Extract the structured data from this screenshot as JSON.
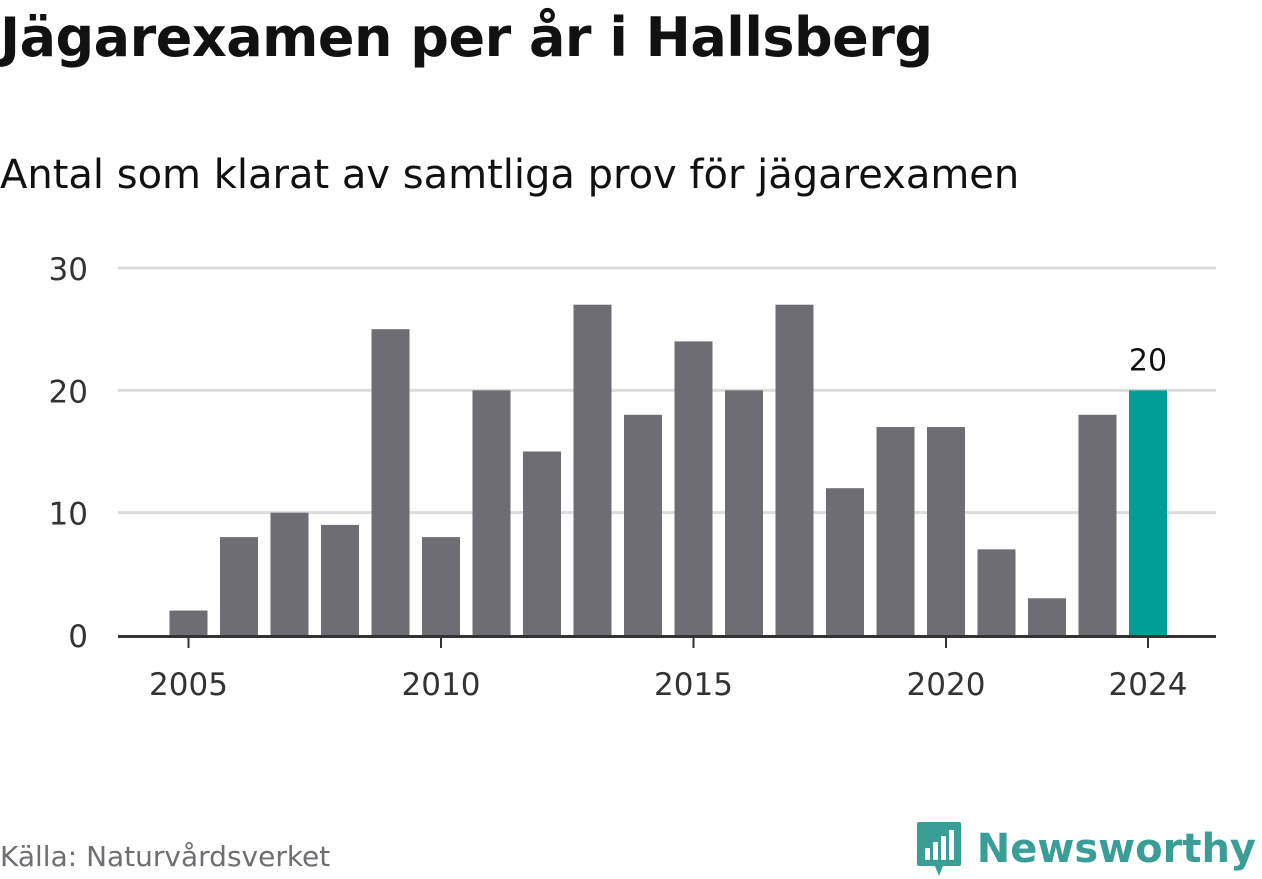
{
  "header": {
    "title": "Jägarexamen per år i Hallsberg",
    "subtitle": "Antal som klarat av samtliga prov för jägarexamen"
  },
  "footer": {
    "source": "Källa: Naturvårdsverket",
    "brand": "Newsworthy",
    "brand_icon": "bar-chart-pin-icon"
  },
  "colors": {
    "bar": "#6e6d73",
    "highlight": "#009e94",
    "grid": "#dcdcdc",
    "axis": "#333333",
    "text": "#111111",
    "brand": "#3a9e97"
  },
  "chart_data": {
    "type": "bar",
    "title": "Jägarexamen per år i Hallsberg",
    "subtitle": "Antal som klarat av samtliga prov för jägarexamen",
    "categories": [
      2005,
      2006,
      2007,
      2008,
      2009,
      2010,
      2011,
      2012,
      2013,
      2014,
      2015,
      2016,
      2017,
      2018,
      2019,
      2020,
      2021,
      2022,
      2023,
      2024
    ],
    "values": [
      2,
      8,
      10,
      9,
      25,
      8,
      20,
      15,
      27,
      18,
      24,
      20,
      27,
      12,
      17,
      17,
      7,
      3,
      18,
      20
    ],
    "highlight": {
      "category": 2024,
      "label": "20"
    },
    "x_ticks": [
      2005,
      2010,
      2015,
      2020,
      2024
    ],
    "y_ticks": [
      0,
      10,
      20,
      30
    ],
    "ylim": [
      0,
      30
    ],
    "xlabel": "",
    "ylabel": "",
    "grid": true,
    "legend": "none"
  }
}
